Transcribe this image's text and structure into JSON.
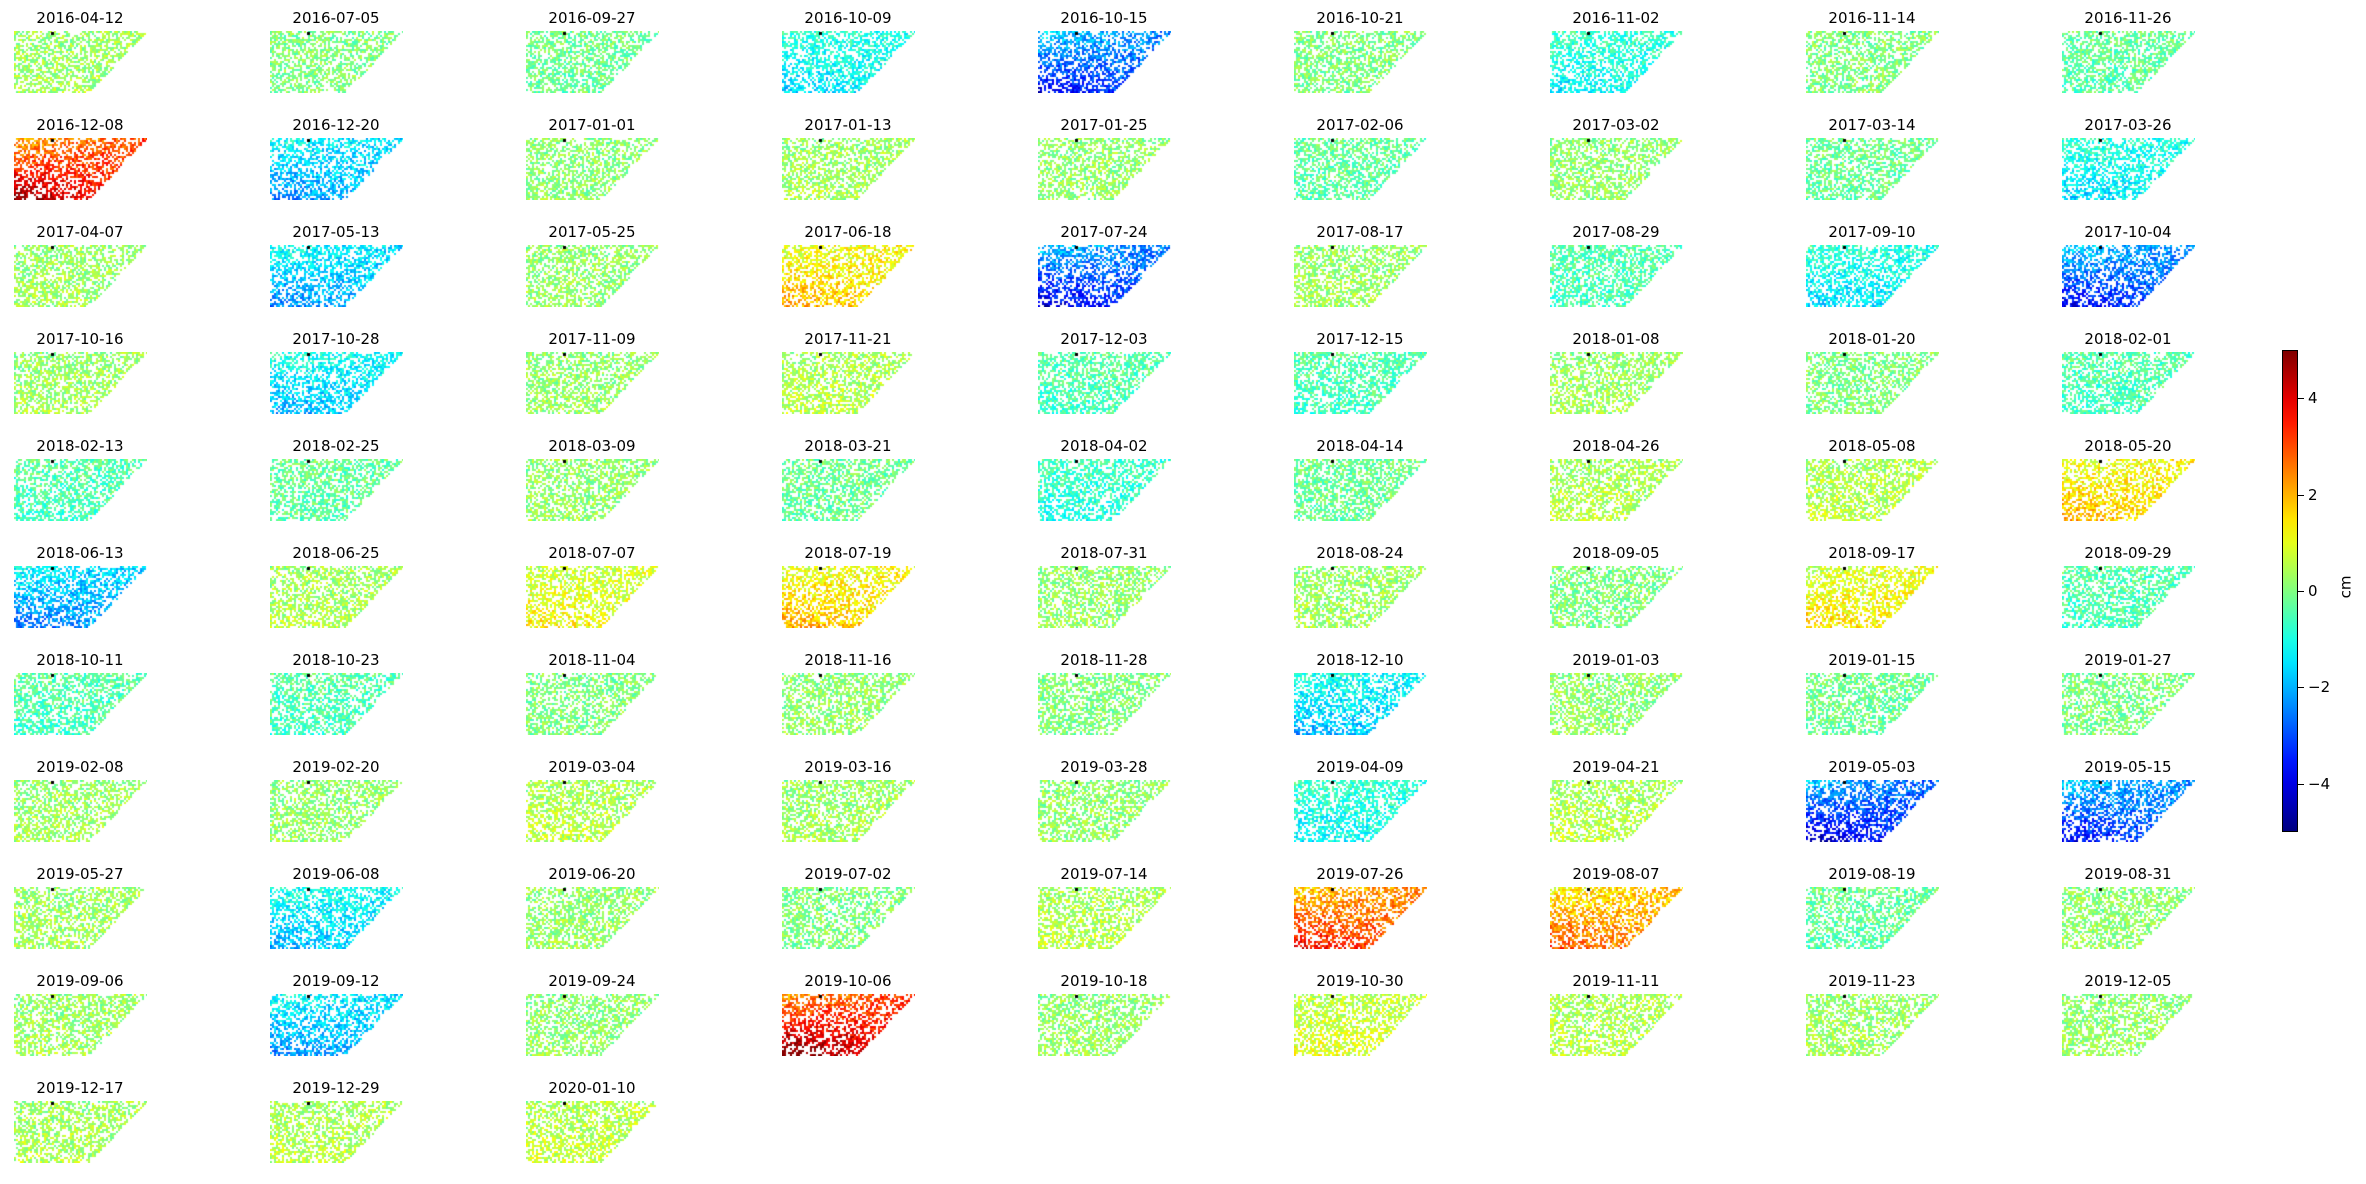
{
  "chart_data": {
    "type": "heatmap",
    "description_kind": "small-multiples displacement maps",
    "colormap": "jet",
    "color_range": [
      -5,
      5
    ],
    "colorbar": {
      "ticks": [
        4,
        2,
        0,
        -2,
        -4
      ],
      "tick_labels": [
        "4",
        "2",
        "0",
        "−2",
        "−4"
      ],
      "label": "cm"
    },
    "dates": [
      "2016-04-12",
      "2016-07-05",
      "2016-09-27",
      "2016-10-09",
      "2016-10-15",
      "2016-10-21",
      "2016-11-02",
      "2016-11-14",
      "2016-11-26",
      "2016-12-08",
      "2016-12-20",
      "2017-01-01",
      "2017-01-13",
      "2017-01-25",
      "2017-02-06",
      "2017-03-02",
      "2017-03-14",
      "2017-03-26",
      "2017-04-07",
      "2017-05-13",
      "2017-05-25",
      "2017-06-18",
      "2017-07-24",
      "2017-08-17",
      "2017-08-29",
      "2017-09-10",
      "2017-10-04",
      "2017-10-16",
      "2017-10-28",
      "2017-11-09",
      "2017-11-21",
      "2017-12-03",
      "2017-12-15",
      "2018-01-08",
      "2018-01-20",
      "2018-02-01",
      "2018-02-13",
      "2018-02-25",
      "2018-03-09",
      "2018-03-21",
      "2018-04-02",
      "2018-04-14",
      "2018-04-26",
      "2018-05-08",
      "2018-05-20",
      "2018-06-13",
      "2018-06-25",
      "2018-07-07",
      "2018-07-19",
      "2018-07-31",
      "2018-08-24",
      "2018-09-05",
      "2018-09-17",
      "2018-09-29",
      "2018-10-11",
      "2018-10-23",
      "2018-11-04",
      "2018-11-16",
      "2018-11-28",
      "2018-12-10",
      "2019-01-03",
      "2019-01-15",
      "2019-01-27",
      "2019-02-08",
      "2019-02-20",
      "2019-03-04",
      "2019-03-16",
      "2019-03-28",
      "2019-04-09",
      "2019-04-21",
      "2019-05-03",
      "2019-05-15",
      "2019-05-27",
      "2019-06-08",
      "2019-06-20",
      "2019-07-02",
      "2019-07-14",
      "2019-07-26",
      "2019-08-07",
      "2019-08-19",
      "2019-08-31",
      "2019-09-06",
      "2019-09-12",
      "2019-09-24",
      "2019-10-06",
      "2019-10-18",
      "2019-10-30",
      "2019-11-11",
      "2019-11-23",
      "2019-12-05",
      "2019-12-17",
      "2019-12-29",
      "2020-01-10"
    ],
    "mean_displacement_cm": [
      0.3,
      0.0,
      -0.2,
      -1.2,
      -2.8,
      0.0,
      -1.0,
      0.0,
      -0.3,
      3.5,
      -1.8,
      0.1,
      0.3,
      0.2,
      -0.3,
      0.2,
      -0.2,
      -1.2,
      0.3,
      -1.8,
      0.2,
      1.5,
      -3.0,
      0.3,
      -0.5,
      -1.2,
      -2.8,
      0.3,
      -1.5,
      0.2,
      0.5,
      -0.5,
      -0.5,
      0.3,
      0.0,
      -0.5,
      -0.5,
      -0.3,
      0.2,
      -0.2,
      -0.8,
      -0.2,
      0.5,
      0.5,
      1.5,
      -2.0,
      0.4,
      1.0,
      1.5,
      0.2,
      0.3,
      0.0,
      1.2,
      -0.5,
      -0.5,
      -0.5,
      0.0,
      0.2,
      0.0,
      -1.5,
      0.2,
      -0.2,
      0.0,
      0.3,
      0.2,
      0.5,
      0.3,
      0.2,
      -1.0,
      0.5,
      -3.2,
      -2.8,
      0.3,
      -1.5,
      0.2,
      0.0,
      0.5,
      2.8,
      2.2,
      -0.3,
      0.2,
      0.3,
      -1.8,
      0.2,
      3.8,
      0.2,
      0.8,
      0.5,
      0.3,
      0.2,
      0.4,
      0.5,
      0.6
    ]
  }
}
